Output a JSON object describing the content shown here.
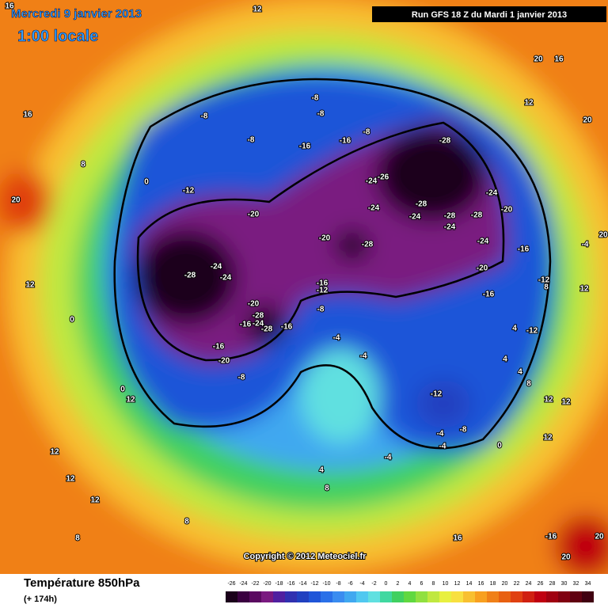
{
  "header": {
    "date": "Mercredi 9 janvier 2013",
    "time": "1:00 locale",
    "run": "Run GFS 18 Z du Mardi 1 janvier 2013"
  },
  "footer": {
    "title": "Température 850hPa",
    "lead": "(+ 174h)",
    "copyright": "Copyright © 2012 Meteociel.fr"
  },
  "colorbar": {
    "ticks": [
      "-26",
      "-24",
      "-22",
      "-20",
      "-18",
      "-16",
      "-14",
      "-12",
      "-10",
      "-8",
      "-6",
      "-4",
      "-2",
      "0",
      "2",
      "4",
      "6",
      "8",
      "10",
      "12",
      "14",
      "16",
      "18",
      "20",
      "22",
      "24",
      "26",
      "28",
      "30",
      "32",
      "34"
    ],
    "colors": [
      "#1a001a",
      "#3a0040",
      "#5a0a60",
      "#7a1a80",
      "#5020a0",
      "#3030b0",
      "#2040c0",
      "#1f55d8",
      "#2a70e8",
      "#3a8cf0",
      "#40a8f0",
      "#50c8f0",
      "#60e0e0",
      "#40d8a0",
      "#40d060",
      "#60d840",
      "#90e040",
      "#c0e840",
      "#e8f040",
      "#f8e040",
      "#f8c030",
      "#f8a020",
      "#f08018",
      "#e86010",
      "#e04010",
      "#d02010",
      "#c00010",
      "#a00010",
      "#800010",
      "#600010",
      "#400010"
    ]
  },
  "map_labels": [
    "12",
    "16",
    "16",
    "20",
    "12",
    "8",
    "0",
    "-12",
    "-8",
    "-8",
    "-8",
    "-8",
    "-16",
    "-16",
    "-8",
    "-20",
    "-28",
    "-24",
    "-24",
    "-20",
    "-28",
    "-28",
    "-26",
    "-24",
    "-24",
    "-28",
    "-24",
    "-28",
    "-24",
    "-28",
    "-24",
    "-20",
    "-24",
    "-20",
    "-16",
    "-16",
    "-12",
    "-16",
    "-12",
    "-20",
    "-28",
    "-16",
    "-24",
    "-28",
    "-16",
    "-8",
    "-16",
    "-20",
    "-8",
    "-4",
    "-4",
    "-12",
    "-4",
    "-4",
    "-8",
    "-4",
    "0",
    "-12",
    "4",
    "4",
    "4",
    "8",
    "12",
    "12",
    "12",
    "12",
    "20",
    "16",
    "20",
    "20",
    "12",
    "-4",
    "8",
    "12",
    "12",
    "12",
    "8",
    "4",
    "8",
    "8",
    "12",
    "0",
    "0",
    "-16",
    "20",
    "20",
    "16"
  ]
}
